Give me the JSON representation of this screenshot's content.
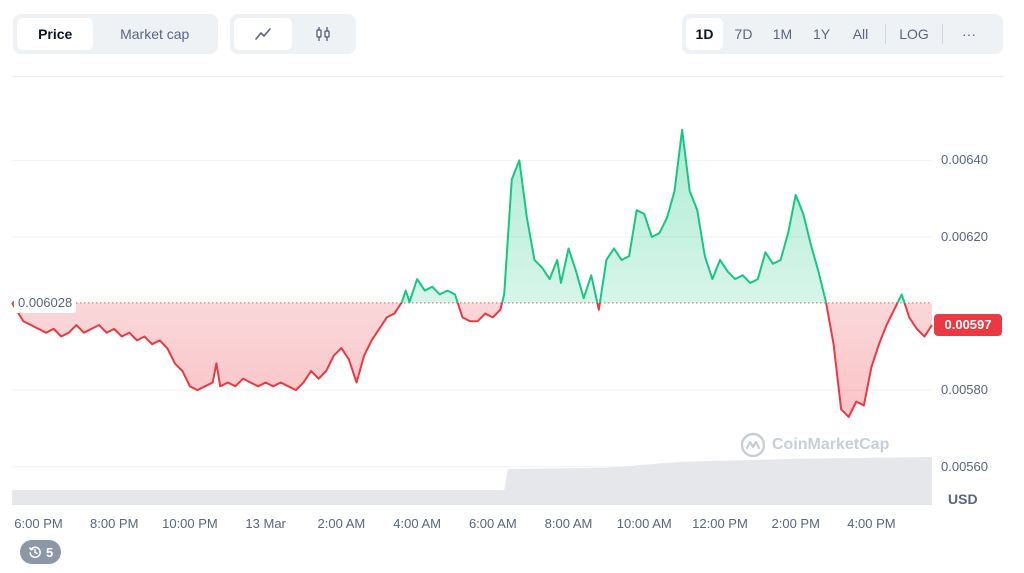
{
  "toolbar": {
    "metric_tabs": [
      "Price",
      "Market cap"
    ],
    "active_metric": "Price",
    "chart_types": [
      "line-chart-icon",
      "candlestick-icon"
    ],
    "active_chart_type": "line-chart-icon",
    "ranges": [
      "1D",
      "7D",
      "1M",
      "1Y",
      "All"
    ],
    "active_range": "1D",
    "log_label": "LOG",
    "more_label": "···"
  },
  "colors": {
    "up": "#16c784",
    "down": "#ea3943",
    "up_fill": "#16c784",
    "down_fill": "#ea3943",
    "volume": "#e5e7eb",
    "baseline": "#e0556b",
    "grid": "#eff2f5",
    "text": "#58667e",
    "watermark": "#c8ced8"
  },
  "watermark": "CoinMarketCap",
  "events_badge": "5",
  "chart_data": {
    "type": "line",
    "unit": "USD",
    "open_label": "0.006028",
    "current_label": "0.00597",
    "open_price": 0.006028,
    "ylim": [
      0.0055,
      0.00661
    ],
    "y_ticks": [
      {
        "label": "0.00640",
        "value": 0.0064
      },
      {
        "label": "0.00620",
        "value": 0.0062
      },
      {
        "label": "0.00580",
        "value": 0.0058
      },
      {
        "label": "0.00560",
        "value": 0.0056
      }
    ],
    "x_ticks": [
      {
        "label": "6:00 PM",
        "hour": 0
      },
      {
        "label": "8:00 PM",
        "hour": 2
      },
      {
        "label": "10:00 PM",
        "hour": 4
      },
      {
        "label": "13 Mar",
        "hour": 6
      },
      {
        "label": "2:00 AM",
        "hour": 8
      },
      {
        "label": "4:00 AM",
        "hour": 10
      },
      {
        "label": "6:00 AM",
        "hour": 12
      },
      {
        "label": "8:00 AM",
        "hour": 14
      },
      {
        "label": "10:00 AM",
        "hour": 16
      },
      {
        "label": "12:00 PM",
        "hour": 18
      },
      {
        "label": "2:00 PM",
        "hour": 20
      },
      {
        "label": "4:00 PM",
        "hour": 22
      }
    ],
    "x_range_hours": [
      -0.7,
      23.6
    ],
    "price_series": [
      [
        -0.7,
        0.006028
      ],
      [
        -0.4,
        0.00598
      ],
      [
        -0.2,
        0.00597
      ],
      [
        0.0,
        0.00596
      ],
      [
        0.2,
        0.00595
      ],
      [
        0.4,
        0.00596
      ],
      [
        0.6,
        0.00594
      ],
      [
        0.8,
        0.00595
      ],
      [
        1.0,
        0.00597
      ],
      [
        1.2,
        0.00595
      ],
      [
        1.4,
        0.00596
      ],
      [
        1.6,
        0.00597
      ],
      [
        1.8,
        0.00595
      ],
      [
        2.0,
        0.00596
      ],
      [
        2.2,
        0.00594
      ],
      [
        2.4,
        0.00595
      ],
      [
        2.6,
        0.00593
      ],
      [
        2.8,
        0.00594
      ],
      [
        3.0,
        0.00592
      ],
      [
        3.2,
        0.00593
      ],
      [
        3.4,
        0.00591
      ],
      [
        3.6,
        0.00587
      ],
      [
        3.8,
        0.00585
      ],
      [
        4.0,
        0.00581
      ],
      [
        4.2,
        0.0058
      ],
      [
        4.4,
        0.00581
      ],
      [
        4.6,
        0.00582
      ],
      [
        4.7,
        0.00587
      ],
      [
        4.8,
        0.00581
      ],
      [
        5.0,
        0.00582
      ],
      [
        5.2,
        0.00581
      ],
      [
        5.4,
        0.00583
      ],
      [
        5.6,
        0.00582
      ],
      [
        5.8,
        0.00581
      ],
      [
        6.0,
        0.00582
      ],
      [
        6.2,
        0.00581
      ],
      [
        6.4,
        0.00582
      ],
      [
        6.6,
        0.00581
      ],
      [
        6.8,
        0.0058
      ],
      [
        7.0,
        0.00582
      ],
      [
        7.2,
        0.00585
      ],
      [
        7.4,
        0.00583
      ],
      [
        7.6,
        0.00585
      ],
      [
        7.8,
        0.00589
      ],
      [
        8.0,
        0.00591
      ],
      [
        8.2,
        0.00588
      ],
      [
        8.4,
        0.00582
      ],
      [
        8.6,
        0.00589
      ],
      [
        8.8,
        0.00593
      ],
      [
        9.0,
        0.00596
      ],
      [
        9.2,
        0.00599
      ],
      [
        9.4,
        0.006
      ],
      [
        9.6,
        0.00603
      ],
      [
        9.7,
        0.00606
      ],
      [
        9.8,
        0.00603
      ],
      [
        10.0,
        0.00609
      ],
      [
        10.2,
        0.00606
      ],
      [
        10.4,
        0.00607
      ],
      [
        10.6,
        0.00605
      ],
      [
        10.8,
        0.00606
      ],
      [
        11.0,
        0.00605
      ],
      [
        11.2,
        0.00599
      ],
      [
        11.4,
        0.00598
      ],
      [
        11.6,
        0.00598
      ],
      [
        11.8,
        0.006
      ],
      [
        12.0,
        0.00599
      ],
      [
        12.2,
        0.00601
      ],
      [
        12.3,
        0.00605
      ],
      [
        12.5,
        0.00635
      ],
      [
        12.7,
        0.0064
      ],
      [
        12.9,
        0.00625
      ],
      [
        13.1,
        0.00614
      ],
      [
        13.3,
        0.00612
      ],
      [
        13.5,
        0.00609
      ],
      [
        13.7,
        0.00614
      ],
      [
        13.8,
        0.00608
      ],
      [
        14.0,
        0.00617
      ],
      [
        14.2,
        0.00611
      ],
      [
        14.4,
        0.00604
      ],
      [
        14.6,
        0.0061
      ],
      [
        14.8,
        0.00601
      ],
      [
        15.0,
        0.00614
      ],
      [
        15.2,
        0.00617
      ],
      [
        15.4,
        0.00614
      ],
      [
        15.6,
        0.00615
      ],
      [
        15.8,
        0.00627
      ],
      [
        16.0,
        0.00626
      ],
      [
        16.2,
        0.0062
      ],
      [
        16.4,
        0.00621
      ],
      [
        16.6,
        0.00625
      ],
      [
        16.8,
        0.00632
      ],
      [
        17.0,
        0.00648
      ],
      [
        17.2,
        0.00632
      ],
      [
        17.4,
        0.00627
      ],
      [
        17.6,
        0.00615
      ],
      [
        17.8,
        0.00609
      ],
      [
        18.0,
        0.00614
      ],
      [
        18.2,
        0.00611
      ],
      [
        18.4,
        0.00609
      ],
      [
        18.6,
        0.0061
      ],
      [
        18.8,
        0.00608
      ],
      [
        19.0,
        0.00609
      ],
      [
        19.2,
        0.00616
      ],
      [
        19.4,
        0.00613
      ],
      [
        19.6,
        0.00614
      ],
      [
        19.8,
        0.00621
      ],
      [
        20.0,
        0.00631
      ],
      [
        20.2,
        0.00626
      ],
      [
        20.4,
        0.00618
      ],
      [
        20.6,
        0.00611
      ],
      [
        20.8,
        0.00603
      ],
      [
        21.0,
        0.00592
      ],
      [
        21.2,
        0.00575
      ],
      [
        21.4,
        0.00573
      ],
      [
        21.6,
        0.00577
      ],
      [
        21.8,
        0.00576
      ],
      [
        22.0,
        0.00586
      ],
      [
        22.2,
        0.00592
      ],
      [
        22.4,
        0.00597
      ],
      [
        22.6,
        0.00601
      ],
      [
        22.8,
        0.00605
      ],
      [
        23.0,
        0.00599
      ],
      [
        23.2,
        0.00596
      ],
      [
        23.4,
        0.00594
      ],
      [
        23.6,
        0.00597
      ]
    ],
    "volume_series": [
      [
        -0.7,
        0.25
      ],
      [
        12.3,
        0.25
      ],
      [
        12.4,
        0.6
      ],
      [
        15.0,
        0.62
      ],
      [
        17.0,
        0.72
      ],
      [
        20.0,
        0.77
      ],
      [
        23.6,
        0.8
      ]
    ]
  }
}
